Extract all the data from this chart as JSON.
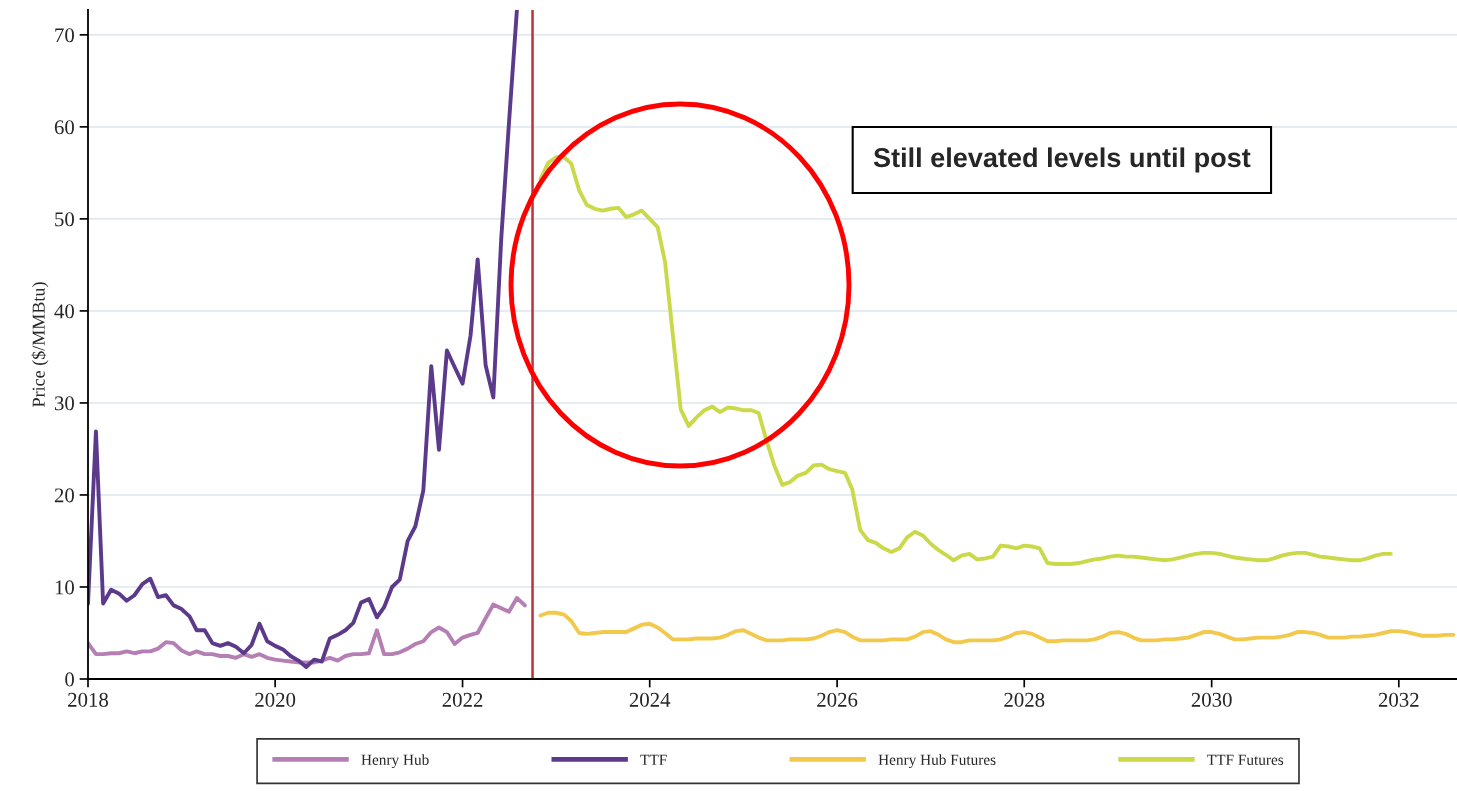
{
  "chart_data": {
    "type": "line",
    "ylabel": "Price ($/MMBtu)",
    "xlim": [
      "2018-01-01",
      "2032-08-15"
    ],
    "ylim": [
      0,
      72.7
    ],
    "xticks": [
      "2018",
      "2020",
      "2022",
      "2024",
      "2026",
      "2028",
      "2030",
      "2032"
    ],
    "yticks": [
      0,
      10,
      20,
      30,
      40,
      50,
      60,
      70
    ],
    "grid": "y",
    "legend": "bottom",
    "line_style": "solid",
    "marker": "none",
    "annotations": [
      "Still elevated levels until post"
    ],
    "ref_lines": [
      {
        "axis": "x",
        "value": "2022-10",
        "color": "#c0303a",
        "line_style": "solid"
      }
    ],
    "series": [
      {
        "name": "Henry Hub",
        "color": "#b57fb5",
        "x": [
          "2018-01",
          "2018-02",
          "2018-03",
          "2018-04",
          "2018-05",
          "2018-06",
          "2018-07",
          "2018-08",
          "2018-09",
          "2018-10",
          "2018-11",
          "2018-12",
          "2019-01",
          "2019-02",
          "2019-03",
          "2019-04",
          "2019-05",
          "2019-06",
          "2019-07",
          "2019-08",
          "2019-09",
          "2019-10",
          "2019-11",
          "2019-12",
          "2020-01",
          "2020-02",
          "2020-03",
          "2020-04",
          "2020-05",
          "2020-06",
          "2020-07",
          "2020-08",
          "2020-09",
          "2020-10",
          "2020-11",
          "2020-12",
          "2021-01",
          "2021-02",
          "2021-03",
          "2021-04",
          "2021-05",
          "2021-06",
          "2021-07",
          "2021-08",
          "2021-09",
          "2021-10",
          "2021-11",
          "2021-12",
          "2022-01",
          "2022-02",
          "2022-03",
          "2022-04",
          "2022-05",
          "2022-06",
          "2022-07",
          "2022-08",
          "2022-09"
        ],
        "values": [
          3.9,
          2.7,
          2.7,
          2.8,
          2.8,
          3.0,
          2.8,
          3.0,
          3.0,
          3.3,
          4.0,
          3.9,
          3.1,
          2.7,
          3.0,
          2.7,
          2.7,
          2.5,
          2.5,
          2.3,
          2.7,
          2.4,
          2.7,
          2.3,
          2.1,
          2.0,
          1.9,
          1.8,
          1.8,
          1.8,
          2.0,
          2.3,
          2.0,
          2.5,
          2.7,
          2.7,
          2.8,
          5.3,
          2.7,
          2.7,
          2.9,
          3.3,
          3.8,
          4.1,
          5.1,
          5.6,
          5.1,
          3.8,
          4.5,
          4.8,
          5.0,
          6.6,
          8.1,
          7.7,
          7.3,
          8.8,
          8.0
        ]
      },
      {
        "name": "TTF",
        "color": "#5b3a8c",
        "x": [
          "2018-01",
          "2018-02",
          "2018-03",
          "2018-04",
          "2018-05",
          "2018-06",
          "2018-07",
          "2018-08",
          "2018-09",
          "2018-10",
          "2018-11",
          "2018-12",
          "2019-01",
          "2019-02",
          "2019-03",
          "2019-04",
          "2019-05",
          "2019-06",
          "2019-07",
          "2019-08",
          "2019-09",
          "2019-10",
          "2019-11",
          "2019-12",
          "2020-01",
          "2020-02",
          "2020-03",
          "2020-04",
          "2020-05",
          "2020-06",
          "2020-07",
          "2020-08",
          "2020-09",
          "2020-10",
          "2020-11",
          "2020-12",
          "2021-01",
          "2021-02",
          "2021-03",
          "2021-04",
          "2021-05",
          "2021-06",
          "2021-07",
          "2021-08",
          "2021-09",
          "2021-10",
          "2021-11",
          "2021-12",
          "2022-01",
          "2022-02",
          "2022-03",
          "2022-04",
          "2022-05",
          "2022-06",
          "2022-07",
          "2022-08"
        ],
        "values": [
          8.2,
          26.9,
          8.2,
          9.7,
          9.3,
          8.5,
          9.1,
          10.3,
          10.9,
          8.9,
          9.1,
          8.0,
          7.6,
          6.8,
          5.3,
          5.3,
          3.9,
          3.6,
          3.9,
          3.5,
          2.8,
          3.7,
          6.0,
          4.1,
          3.6,
          3.2,
          2.5,
          2.0,
          1.3,
          2.1,
          1.9,
          4.4,
          4.8,
          5.3,
          6.1,
          8.3,
          8.7,
          6.7,
          7.8,
          10.0,
          10.8,
          15.0,
          16.6,
          20.5,
          34.0,
          24.9,
          35.7,
          33.9,
          32.1,
          37.3,
          45.6,
          34.1,
          30.6,
          47.9,
          60.4,
          72.7
        ]
      },
      {
        "name": "Henry Hub Futures",
        "color": "#f2c94c",
        "x": [
          "2022-11",
          "2022-12",
          "2023-01",
          "2023-02",
          "2023-03",
          "2023-04",
          "2023-05",
          "2023-06",
          "2023-07",
          "2023-08",
          "2023-09",
          "2023-10",
          "2023-11",
          "2023-12",
          "2024-01",
          "2024-02",
          "2024-03",
          "2024-04",
          "2024-05",
          "2024-06",
          "2024-07",
          "2024-08",
          "2024-09",
          "2024-10",
          "2024-11",
          "2024-12",
          "2025-01",
          "2025-02",
          "2025-03",
          "2025-04",
          "2025-05",
          "2025-06",
          "2025-07",
          "2025-08",
          "2025-09",
          "2025-10",
          "2025-11",
          "2025-12",
          "2026-01",
          "2026-02",
          "2026-03",
          "2026-04",
          "2026-05",
          "2026-06",
          "2026-07",
          "2026-08",
          "2026-09",
          "2026-10",
          "2026-11",
          "2026-12",
          "2027-01",
          "2027-02",
          "2027-03",
          "2027-04",
          "2027-05",
          "2027-06",
          "2027-07",
          "2027-08",
          "2027-09",
          "2027-10",
          "2027-11",
          "2027-12",
          "2028-01",
          "2028-02",
          "2028-03",
          "2028-04",
          "2028-05",
          "2028-06",
          "2028-07",
          "2028-08",
          "2028-09",
          "2028-10",
          "2028-11",
          "2028-12",
          "2029-01",
          "2029-02",
          "2029-03",
          "2029-04",
          "2029-05",
          "2029-06",
          "2029-07",
          "2029-08",
          "2029-09",
          "2029-10",
          "2029-11",
          "2029-12",
          "2030-01",
          "2030-02",
          "2030-03",
          "2030-04",
          "2030-05",
          "2030-06",
          "2030-07",
          "2030-08",
          "2030-09",
          "2030-10",
          "2030-11",
          "2030-12",
          "2031-01",
          "2031-02",
          "2031-03",
          "2031-04",
          "2031-05",
          "2031-06",
          "2031-07",
          "2031-08",
          "2031-09",
          "2031-10",
          "2031-11",
          "2031-12",
          "2032-01",
          "2032-02",
          "2032-03",
          "2032-04",
          "2032-05",
          "2032-06",
          "2032-07",
          "2032-08"
        ],
        "values": [
          6.9,
          7.2,
          7.2,
          7.0,
          6.3,
          5.0,
          4.9,
          5.0,
          5.1,
          5.1,
          5.1,
          5.1,
          5.5,
          5.9,
          6.0,
          5.6,
          5.0,
          4.3,
          4.3,
          4.3,
          4.4,
          4.4,
          4.4,
          4.5,
          4.8,
          5.2,
          5.3,
          4.9,
          4.5,
          4.2,
          4.2,
          4.2,
          4.3,
          4.3,
          4.3,
          4.4,
          4.7,
          5.1,
          5.3,
          5.1,
          4.6,
          4.2,
          4.2,
          4.2,
          4.2,
          4.3,
          4.3,
          4.3,
          4.6,
          5.1,
          5.2,
          4.8,
          4.3,
          4.0,
          4.0,
          4.2,
          4.2,
          4.2,
          4.2,
          4.3,
          4.6,
          5.0,
          5.1,
          4.9,
          4.5,
          4.1,
          4.1,
          4.2,
          4.2,
          4.2,
          4.2,
          4.3,
          4.6,
          5.0,
          5.1,
          4.9,
          4.5,
          4.2,
          4.2,
          4.2,
          4.3,
          4.3,
          4.4,
          4.5,
          4.8,
          5.1,
          5.1,
          4.9,
          4.6,
          4.3,
          4.3,
          4.4,
          4.5,
          4.5,
          4.5,
          4.6,
          4.8,
          5.1,
          5.1,
          5.0,
          4.8,
          4.5,
          4.5,
          4.5,
          4.6,
          4.6,
          4.7,
          4.8,
          5.0,
          5.2,
          5.2,
          5.1,
          4.9,
          4.7,
          4.7,
          4.7,
          4.8,
          4.8
        ]
      },
      {
        "name": "TTF Futures",
        "color": "#c9d94a",
        "x": [
          "2022-11",
          "2022-12",
          "2023-01",
          "2023-02",
          "2023-03",
          "2023-04",
          "2023-05",
          "2023-06",
          "2023-07",
          "2023-08",
          "2023-09",
          "2023-10",
          "2023-11",
          "2023-12",
          "2024-01",
          "2024-02",
          "2024-03",
          "2024-04",
          "2024-05",
          "2024-06",
          "2024-07",
          "2024-08",
          "2024-09",
          "2024-10",
          "2024-11",
          "2024-12",
          "2025-01",
          "2025-02",
          "2025-03",
          "2025-04",
          "2025-05",
          "2025-06",
          "2025-07",
          "2025-08",
          "2025-09",
          "2025-10",
          "2025-11",
          "2025-12",
          "2026-01",
          "2026-02",
          "2026-03",
          "2026-04",
          "2026-05",
          "2026-06",
          "2026-07",
          "2026-08",
          "2026-09",
          "2026-10",
          "2026-11",
          "2026-12",
          "2027-01",
          "2027-02",
          "2027-03",
          "2027-04",
          "2027-05",
          "2027-06",
          "2027-07",
          "2027-08",
          "2027-09",
          "2027-10",
          "2027-11",
          "2027-12",
          "2028-01",
          "2028-02",
          "2028-03",
          "2028-04",
          "2028-05",
          "2028-06",
          "2028-07",
          "2028-08",
          "2028-09",
          "2028-10",
          "2028-11",
          "2028-12",
          "2029-01",
          "2029-02",
          "2029-03",
          "2029-04",
          "2029-05",
          "2029-06",
          "2029-07",
          "2029-08",
          "2029-09",
          "2029-10",
          "2029-11",
          "2029-12",
          "2030-01",
          "2030-02",
          "2030-03",
          "2030-04",
          "2030-05",
          "2030-06",
          "2030-07",
          "2030-08",
          "2030-09",
          "2030-10",
          "2030-11",
          "2030-12",
          "2031-01",
          "2031-02",
          "2031-03",
          "2031-04",
          "2031-05",
          "2031-06",
          "2031-07",
          "2031-08",
          "2031-09",
          "2031-10",
          "2031-11",
          "2031-12"
        ],
        "values": [
          54.3,
          56.1,
          56.7,
          56.7,
          56.0,
          53.1,
          51.5,
          51.1,
          50.9,
          51.1,
          51.2,
          50.2,
          50.5,
          50.9,
          50.0,
          49.1,
          45.3,
          37.2,
          29.3,
          27.5,
          28.4,
          29.2,
          29.6,
          29.0,
          29.5,
          29.4,
          29.2,
          29.2,
          28.9,
          25.9,
          23.2,
          21.1,
          21.4,
          22.1,
          22.4,
          23.2,
          23.3,
          22.8,
          22.6,
          22.4,
          20.6,
          16.2,
          15.1,
          14.8,
          14.2,
          13.8,
          14.2,
          15.4,
          16.0,
          15.6,
          14.7,
          14.0,
          13.5,
          12.9,
          13.4,
          13.6,
          13.0,
          13.1,
          13.3,
          14.5,
          14.4,
          14.2,
          14.5,
          14.4,
          14.2,
          12.6,
          12.5,
          12.5,
          12.5,
          12.6,
          12.8,
          13.0,
          13.1,
          13.3,
          13.4,
          13.3,
          13.3,
          13.2,
          13.1,
          13.0,
          12.9,
          13.0,
          13.2,
          13.4,
          13.6,
          13.7,
          13.7,
          13.6,
          13.4,
          13.2,
          13.1,
          13.0,
          12.9,
          12.9,
          13.1,
          13.4,
          13.6,
          13.7,
          13.7,
          13.5,
          13.3,
          13.2,
          13.1,
          13.0,
          12.9,
          12.9,
          13.1,
          13.4,
          13.6,
          13.6
        ]
      }
    ]
  }
}
